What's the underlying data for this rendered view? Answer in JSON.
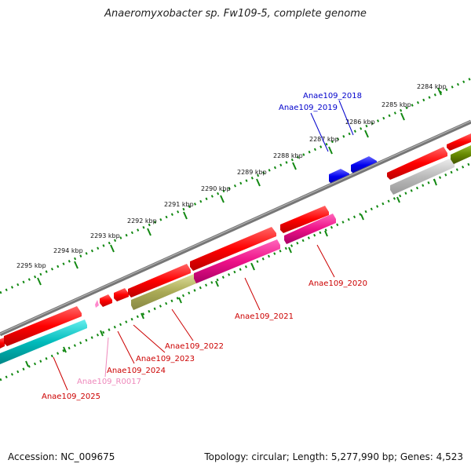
{
  "header": {
    "title": "Anaeromyxobacter sp. Fw109-5, complete genome"
  },
  "footer": {
    "accession": "Accession: NC_009675",
    "summary": "Topology: circular; Length: 5,277,990 bp; Genes: 4,523"
  },
  "ruler": {
    "unit_labels": [
      "2284 kbp",
      "2285 kbp",
      "2286 kbp",
      "2287 kbp",
      "2288 kbp",
      "2289 kbp",
      "2290 kbp",
      "2291 kbp",
      "2292 kbp",
      "2293 kbp",
      "2294 kbp",
      "2295 kbp"
    ]
  },
  "gene_labels": [
    {
      "id": "Anae109_2018",
      "color": "#0000cc"
    },
    {
      "id": "Anae109_2019",
      "color": "#0000cc"
    },
    {
      "id": "Anae109_2020",
      "color": "#cc0000"
    },
    {
      "id": "Anae109_2021",
      "color": "#cc0000"
    },
    {
      "id": "Anae109_2022",
      "color": "#cc0000"
    },
    {
      "id": "Anae109_2023",
      "color": "#cc0000"
    },
    {
      "id": "Anae109_2024",
      "color": "#cc0000"
    },
    {
      "id": "Anae109_R0017",
      "color": "#ee88bb"
    },
    {
      "id": "Anae109_2025",
      "color": "#cc0000"
    }
  ],
  "feature_colors": {
    "cds": "#ff0000",
    "other_strand": "#0000ee",
    "rna": "#ff88cc",
    "magenta": "#ee1188",
    "cyan": "#00bbbb",
    "olive": "#aaaa55",
    "green": "#668800",
    "grey": "#bbbbbb",
    "backbone": "#777777",
    "ruler": "#118811"
  }
}
